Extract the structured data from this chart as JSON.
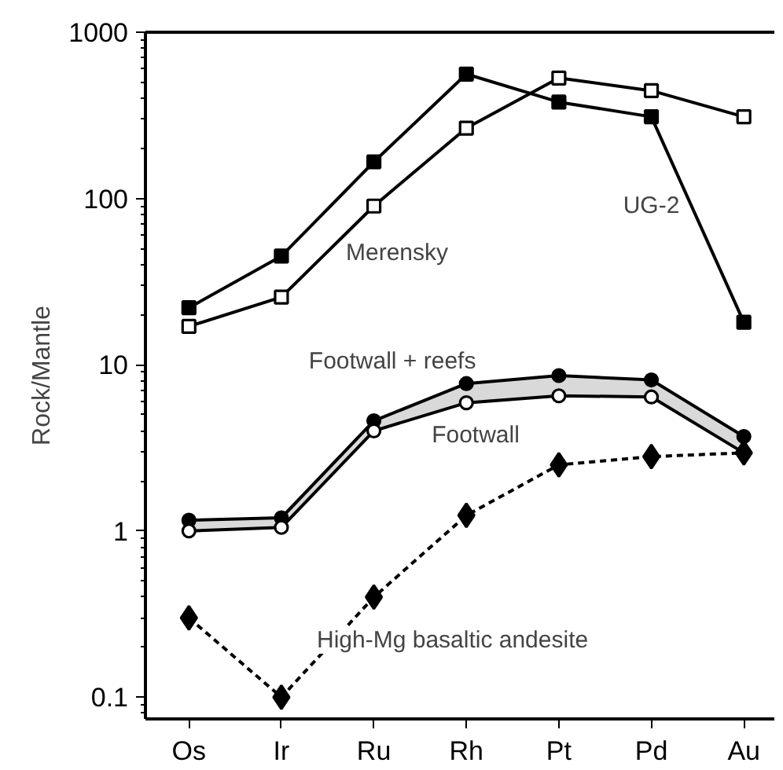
{
  "chart_data": {
    "type": "line",
    "ylabel": "Rock/Mantle",
    "categories": [
      "Os",
      "Ir",
      "Ru",
      "Rh",
      "Pt",
      "Pd",
      "Au"
    ],
    "log": "y",
    "ylim": [
      0.074,
      1000
    ],
    "yticks": [
      0.1,
      1,
      10,
      100,
      1000
    ],
    "grid": false,
    "series": [
      {
        "name": "UG-2",
        "color": "#000000",
        "marker": "square",
        "line_style": "solid",
        "values": [
          22,
          45,
          166,
          560,
          380,
          310,
          18
        ]
      },
      {
        "name": "Merensky",
        "color": "#000000",
        "marker": "square",
        "line_style": "solid",
        "values": [
          17,
          25.5,
          90,
          265,
          530,
          445,
          310
        ]
      },
      {
        "name": "Footwall + reefs",
        "color": "#000000",
        "marker": "circle",
        "line_style": "solid",
        "values": [
          1.16,
          1.2,
          4.6,
          7.7,
          8.6,
          8.1,
          3.7
        ],
        "lower": [
          1.0,
          1.05,
          4.0,
          5.9,
          6.5,
          6.4,
          2.95
        ],
        "upper": [
          1.16,
          1.2,
          4.6,
          7.7,
          8.6,
          8.1,
          3.7
        ]
      },
      {
        "name": "Footwall",
        "color": "#000000",
        "marker": "circle",
        "line_style": "solid",
        "values": [
          1.0,
          1.05,
          4.0,
          5.9,
          6.5,
          6.4,
          2.95
        ]
      },
      {
        "name": "High-Mg basaltic andesite",
        "color": "#000000",
        "marker": "diamond",
        "line_style": "dashed",
        "values": [
          0.3,
          0.1,
          0.4,
          1.24,
          2.5,
          2.8,
          2.95
        ]
      }
    ]
  }
}
